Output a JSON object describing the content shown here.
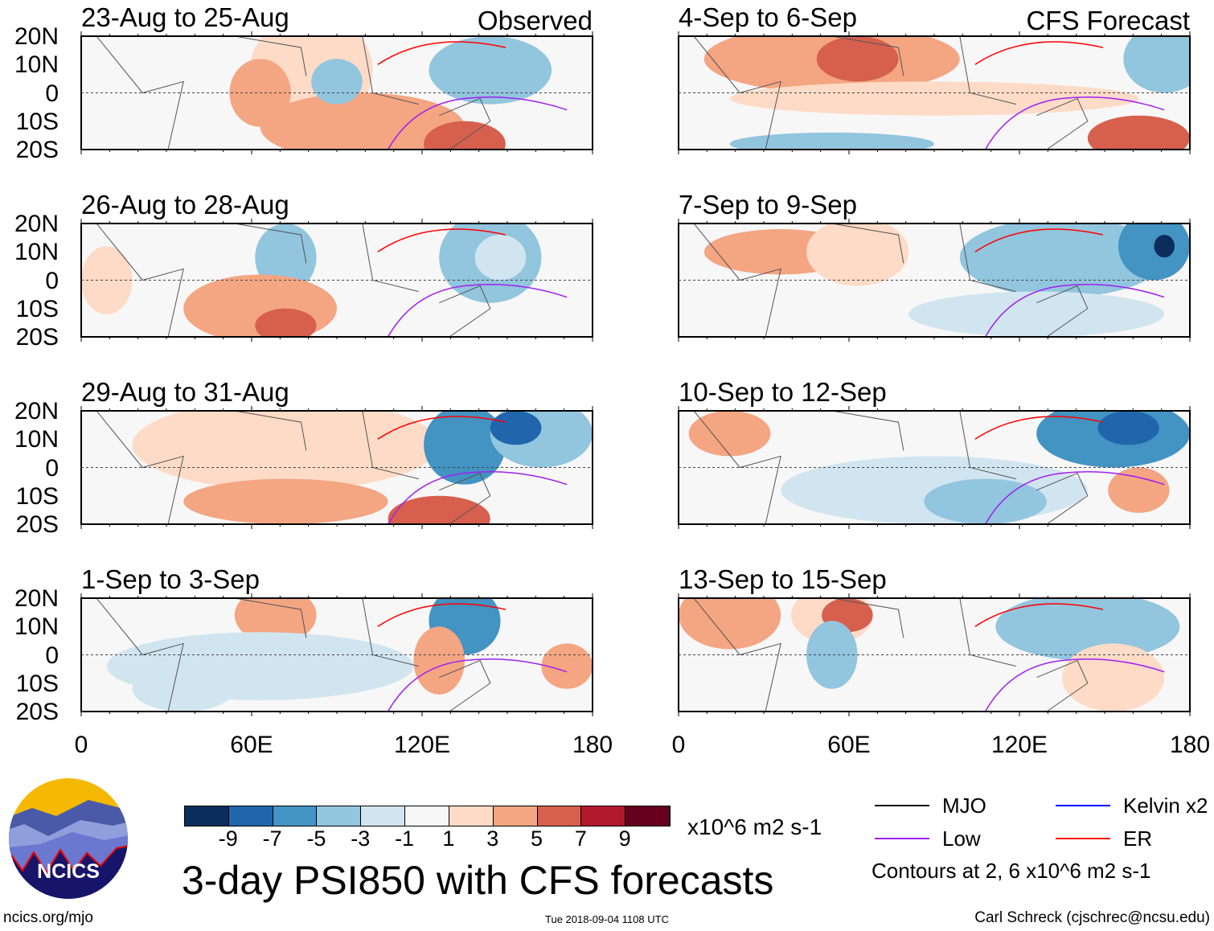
{
  "panels": [
    {
      "title": "23-Aug to 25-Aug",
      "tag": "Observed"
    },
    {
      "title": "4-Sep to 6-Sep",
      "tag": "CFS Forecast"
    },
    {
      "title": "26-Aug to 28-Aug",
      "tag": ""
    },
    {
      "title": "7-Sep to 9-Sep",
      "tag": ""
    },
    {
      "title": "29-Aug to 31-Aug",
      "tag": ""
    },
    {
      "title": "10-Sep to 12-Sep",
      "tag": ""
    },
    {
      "title": "1-Sep to 3-Sep",
      "tag": ""
    },
    {
      "title": "13-Sep to 15-Sep",
      "tag": ""
    }
  ],
  "y_ticks": [
    "20N",
    "10N",
    "0",
    "10S",
    "20S"
  ],
  "x_ticks": [
    "0",
    "60E",
    "120E",
    "180"
  ],
  "colorbar": {
    "colors": [
      "#0b2d5c",
      "#2166ac",
      "#4393c3",
      "#92c5de",
      "#d1e5f0",
      "#f7f7f7",
      "#fddbc7",
      "#f4a582",
      "#d6604d",
      "#b2182b",
      "#67001f"
    ],
    "labels": [
      "-9",
      "-7",
      "-5",
      "-3",
      "-1",
      "1",
      "3",
      "5",
      "7",
      "9"
    ],
    "units": "x10^6 m2 s-1"
  },
  "legend": {
    "items": [
      {
        "label": "MJO",
        "color": "#000000"
      },
      {
        "label": "Kelvin x2",
        "color": "#0000ff"
      },
      {
        "label": "Low",
        "color": "#a020f0"
      },
      {
        "label": "ER",
        "color": "#ff0000"
      }
    ],
    "contours_note": "Contours at 2, 6 x10^6 m2 s-1"
  },
  "title": "3-day PSI850 with CFS forecasts",
  "logo_text": "NCICS",
  "footer": {
    "left": "ncics.org/mjo",
    "center": "Tue 2018-09-04 1108 UTC",
    "right": "Carl Schreck (cjschrec@ncsu.edu)"
  }
}
